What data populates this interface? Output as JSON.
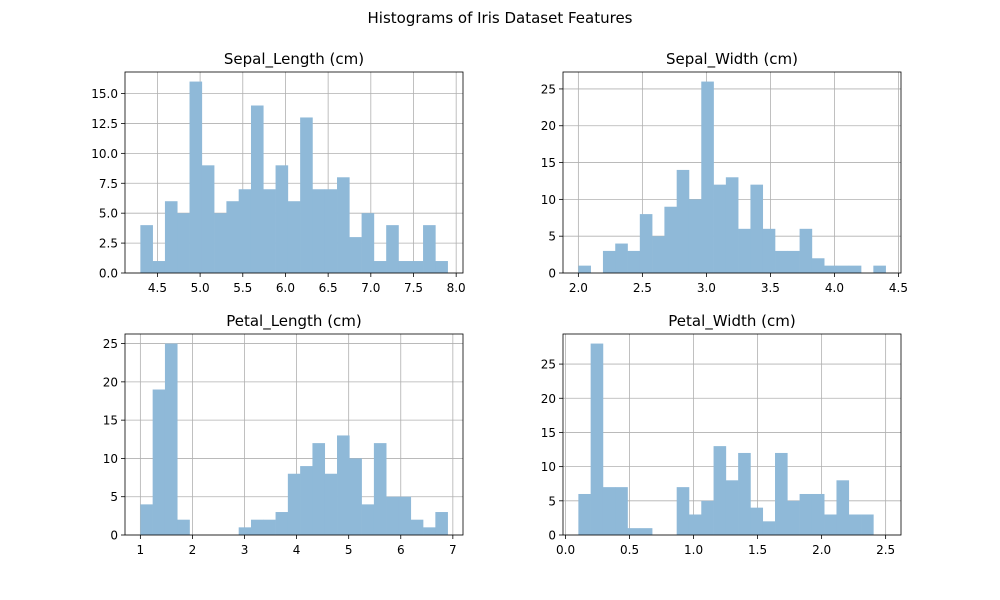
{
  "figure": {
    "title": "Histograms of Iris Dataset Features"
  },
  "chart_data": [
    {
      "type": "bar",
      "title": "Sepal_Length (cm)",
      "xlabel": "",
      "ylabel": "",
      "bin_range": [
        4.3,
        7.9
      ],
      "values": [
        4,
        1,
        6,
        5,
        16,
        9,
        5,
        6,
        7,
        14,
        7,
        9,
        6,
        13,
        7,
        7,
        8,
        3,
        5,
        1,
        4,
        1,
        1,
        4,
        1
      ],
      "xlim": [
        4.12,
        8.08
      ],
      "ylim": [
        0,
        16.8
      ],
      "xticks": [
        4.5,
        5.0,
        5.5,
        6.0,
        6.5,
        7.0,
        7.5,
        8.0
      ],
      "xticklabels": [
        "4.5",
        "5.0",
        "5.5",
        "6.0",
        "6.5",
        "7.0",
        "7.5",
        "8.0"
      ],
      "yticks": [
        0,
        2.5,
        5,
        7.5,
        10,
        12.5,
        15
      ],
      "yticklabels": [
        "0.0",
        "2.5",
        "5.0",
        "7.5",
        "10.0",
        "12.5",
        "15.0"
      ],
      "grid": true,
      "color": "#8fb9d8"
    },
    {
      "type": "bar",
      "title": "Sepal_Width (cm)",
      "xlabel": "",
      "ylabel": "",
      "bin_range": [
        2.0,
        4.4
      ],
      "values": [
        1,
        0,
        3,
        4,
        3,
        8,
        5,
        9,
        14,
        10,
        26,
        12,
        13,
        6,
        12,
        6,
        3,
        3,
        6,
        2,
        1,
        1,
        1,
        0,
        1
      ],
      "xlim": [
        1.88,
        4.52
      ],
      "ylim": [
        0,
        27.3
      ],
      "xticks": [
        2.0,
        2.5,
        3.0,
        3.5,
        4.0,
        4.5
      ],
      "xticklabels": [
        "2.0",
        "2.5",
        "3.0",
        "3.5",
        "4.0",
        "4.5"
      ],
      "yticks": [
        0,
        5,
        10,
        15,
        20,
        25
      ],
      "yticklabels": [
        "0",
        "5",
        "10",
        "15",
        "20",
        "25"
      ],
      "grid": true,
      "color": "#8fb9d8"
    },
    {
      "type": "bar",
      "title": "Petal_Length (cm)",
      "xlabel": "",
      "ylabel": "",
      "bin_range": [
        1.0,
        6.9
      ],
      "values": [
        4,
        19,
        25,
        2,
        0,
        0,
        0,
        0,
        1,
        2,
        2,
        3,
        8,
        9,
        12,
        8,
        13,
        10,
        4,
        12,
        5,
        5,
        2,
        1,
        3
      ],
      "xlim": [
        0.705,
        7.195
      ],
      "ylim": [
        0,
        26.25
      ],
      "xticks": [
        1,
        2,
        3,
        4,
        5,
        6,
        7
      ],
      "xticklabels": [
        "1",
        "2",
        "3",
        "4",
        "5",
        "6",
        "7"
      ],
      "yticks": [
        0,
        5,
        10,
        15,
        20,
        25
      ],
      "yticklabels": [
        "0",
        "5",
        "10",
        "15",
        "20",
        "25"
      ],
      "grid": true,
      "color": "#8fb9d8"
    },
    {
      "type": "bar",
      "title": "Petal_Width (cm)",
      "xlabel": "",
      "ylabel": "",
      "bin_range": [
        0.1,
        2.5
      ],
      "values": [
        6,
        28,
        7,
        7,
        1,
        1,
        0,
        0,
        7,
        3,
        5,
        13,
        8,
        12,
        4,
        2,
        12,
        5,
        6,
        6,
        3,
        8,
        3,
        3,
        0
      ],
      "xlim": [
        -0.02,
        2.62
      ],
      "ylim": [
        0,
        29.4
      ],
      "xticks": [
        0.0,
        0.5,
        1.0,
        1.5,
        2.0,
        2.5
      ],
      "xticklabels": [
        "0.0",
        "0.5",
        "1.0",
        "1.5",
        "2.0",
        "2.5"
      ],
      "yticks": [
        0,
        5,
        10,
        15,
        20,
        25
      ],
      "yticklabels": [
        "0",
        "5",
        "10",
        "15",
        "20",
        "25"
      ],
      "grid": true,
      "color": "#8fb9d8"
    }
  ]
}
